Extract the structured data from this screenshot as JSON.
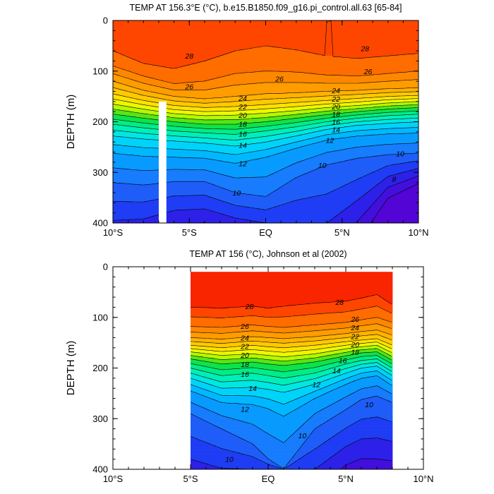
{
  "chart_data": [
    {
      "type": "contour",
      "title": "TEMP AT 156.3°E (°C), b.e15.B1850.f09_g16.pi_control.all.63 [65-84]",
      "ylabel": "DEPTH (m)",
      "xlim": [
        -10,
        10
      ],
      "ylim": [
        0,
        400
      ],
      "y_reversed": true,
      "x_ticks": [
        {
          "value": -10,
          "label": "10°S"
        },
        {
          "value": -5,
          "label": "5°S"
        },
        {
          "value": 0,
          "label": "EQ"
        },
        {
          "value": 5,
          "label": "5°N"
        },
        {
          "value": 10,
          "label": "10°N"
        }
      ],
      "y_ticks": [
        0,
        100,
        200,
        300,
        400
      ],
      "data_extent": {
        "lat": [
          -10,
          10
        ],
        "depth": [
          0,
          400
        ]
      },
      "land_mask_lat": [
        -7,
        -6.5
      ],
      "levels": [
        6,
        7,
        8,
        9,
        10,
        11,
        12,
        13,
        14,
        15,
        16,
        17,
        18,
        19,
        20,
        21,
        22,
        23,
        24,
        25,
        26,
        27,
        28,
        29
      ],
      "contours": [
        {
          "value": 28,
          "lat": [
            -10,
            -8,
            -6,
            -4,
            -2,
            0,
            2,
            4,
            6,
            8,
            10
          ],
          "depth": [
            10,
            40,
            55,
            45,
            20,
            2,
            20,
            45,
            40,
            25,
            15
          ]
        },
        {
          "value": 27,
          "lat": [
            -10,
            -8,
            -6,
            -4,
            -2,
            0,
            2,
            4,
            6,
            8,
            10
          ],
          "depth": [
            60,
            85,
            95,
            80,
            60,
            50,
            58,
            70,
            75,
            70,
            65
          ]
        },
        {
          "value": 26,
          "lat": [
            -10,
            -8,
            -6,
            -4,
            -2,
            0,
            2,
            4,
            6,
            8,
            10
          ],
          "depth": [
            90,
            110,
            125,
            120,
            105,
            100,
            102,
            108,
            110,
            105,
            100
          ]
        },
        {
          "value": 24,
          "lat": [
            -10,
            -8,
            -6,
            -4,
            -2,
            0,
            2,
            4,
            6,
            8,
            10
          ],
          "depth": [
            120,
            138,
            150,
            155,
            150,
            145,
            143,
            140,
            138,
            135,
            133
          ]
        },
        {
          "value": 22,
          "lat": [
            -10,
            -8,
            -6,
            -4,
            -2,
            0,
            2,
            4,
            6,
            8,
            10
          ],
          "depth": [
            145,
            158,
            168,
            172,
            170,
            166,
            162,
            158,
            154,
            150,
            148
          ]
        },
        {
          "value": 20,
          "lat": [
            -10,
            -8,
            -6,
            -4,
            -2,
            0,
            2,
            4,
            6,
            8,
            10
          ],
          "depth": [
            165,
            175,
            184,
            188,
            187,
            183,
            178,
            172,
            168,
            163,
            160
          ]
        },
        {
          "value": 18,
          "lat": [
            -10,
            -8,
            -6,
            -4,
            -2,
            0,
            2,
            4,
            6,
            8,
            10
          ],
          "depth": [
            185,
            193,
            200,
            205,
            205,
            200,
            193,
            186,
            180,
            175,
            172
          ]
        },
        {
          "value": 16,
          "lat": [
            -10,
            -8,
            -6,
            -4,
            -2,
            0,
            2,
            4,
            6,
            8,
            10
          ],
          "depth": [
            205,
            212,
            218,
            222,
            225,
            218,
            210,
            200,
            193,
            188,
            185
          ]
        },
        {
          "value": 14,
          "lat": [
            -10,
            -8,
            -6,
            -4,
            -2,
            0,
            2,
            4,
            6,
            8,
            10
          ],
          "depth": [
            228,
            234,
            238,
            242,
            248,
            240,
            228,
            215,
            207,
            203,
            200
          ]
        },
        {
          "value": 12,
          "lat": [
            -10,
            -8,
            -6,
            -4,
            -2,
            0,
            2,
            4,
            6,
            8,
            10
          ],
          "depth": [
            262,
            268,
            270,
            272,
            282,
            270,
            252,
            236,
            228,
            224,
            222
          ]
        },
        {
          "value": 10,
          "lat": [
            -10,
            -8,
            -6,
            -4,
            -2,
            0,
            2,
            4,
            6,
            8,
            10
          ],
          "depth": [
            320,
            325,
            318,
            318,
            340,
            348,
            310,
            285,
            272,
            265,
            262
          ]
        },
        {
          "value": 8,
          "lat": [
            -10,
            -8,
            -6,
            -4,
            -2,
            0,
            2,
            4,
            6,
            8,
            10
          ],
          "depth": [
            395,
            392,
            375,
            372,
            390,
            400,
            400,
            400,
            355,
            308,
            292
          ]
        }
      ],
      "contour_labels": [
        {
          "text": "28",
          "lat": -5,
          "depth": 70
        },
        {
          "text": "28",
          "lat": 6.5,
          "depth": 55
        },
        {
          "text": "26",
          "lat": -5,
          "depth": 130
        },
        {
          "text": "26",
          "lat": 0.9,
          "depth": 115
        },
        {
          "text": "26",
          "lat": 6.7,
          "depth": 100
        },
        {
          "text": "24",
          "lat": -1.5,
          "depth": 153
        },
        {
          "text": "24",
          "lat": 4.6,
          "depth": 138
        },
        {
          "text": "22",
          "lat": -1.5,
          "depth": 170
        },
        {
          "text": "22",
          "lat": 4.6,
          "depth": 155
        },
        {
          "text": "20",
          "lat": -1.5,
          "depth": 187
        },
        {
          "text": "20",
          "lat": 4.6,
          "depth": 170
        },
        {
          "text": "18",
          "lat": -1.5,
          "depth": 204
        },
        {
          "text": "18",
          "lat": 4.6,
          "depth": 185
        },
        {
          "text": "16",
          "lat": -1.5,
          "depth": 224
        },
        {
          "text": "16",
          "lat": 4.6,
          "depth": 200
        },
        {
          "text": "14",
          "lat": -1.5,
          "depth": 246
        },
        {
          "text": "14",
          "lat": 4.6,
          "depth": 215
        },
        {
          "text": "12",
          "lat": -1.5,
          "depth": 282
        },
        {
          "text": "12",
          "lat": 4.2,
          "depth": 236
        },
        {
          "text": "10",
          "lat": -1.9,
          "depth": 340
        },
        {
          "text": "10",
          "lat": 3.7,
          "depth": 286
        },
        {
          "text": "10",
          "lat": 8.8,
          "depth": 263
        },
        {
          "text": "8",
          "lat": 8.4,
          "depth": 313
        }
      ]
    },
    {
      "type": "contour",
      "title": "TEMP AT 156 (°C), Johnson et al (2002)",
      "ylabel": "DEPTH (m)",
      "xlim": [
        -10,
        10
      ],
      "ylim": [
        0,
        400
      ],
      "y_reversed": true,
      "x_ticks": [
        {
          "value": -10,
          "label": "10°S"
        },
        {
          "value": -5,
          "label": "5°S"
        },
        {
          "value": 0,
          "label": "EQ"
        },
        {
          "value": 5,
          "label": "5°N"
        },
        {
          "value": 10,
          "label": "10°N"
        }
      ],
      "y_ticks": [
        0,
        100,
        200,
        300,
        400
      ],
      "data_extent": {
        "lat": [
          -5,
          8
        ],
        "depth": [
          10,
          400
        ]
      },
      "levels": [
        6,
        7,
        8,
        9,
        10,
        11,
        12,
        13,
        14,
        15,
        16,
        17,
        18,
        19,
        20,
        21,
        22,
        23,
        24,
        25,
        26,
        27,
        28,
        29
      ],
      "contours": [
        {
          "value": 29,
          "lat": [
            -5,
            -3,
            -1,
            0,
            1,
            3,
            5,
            6,
            7,
            8
          ],
          "depth": [
            40,
            42,
            35,
            48,
            30,
            40,
            35,
            28,
            22,
            45
          ]
        },
        {
          "value": 28,
          "lat": [
            -5,
            -3,
            -1,
            0,
            1,
            3,
            5,
            6,
            7,
            8
          ],
          "depth": [
            80,
            82,
            78,
            82,
            78,
            72,
            68,
            62,
            55,
            75
          ]
        },
        {
          "value": 26,
          "lat": [
            -5,
            -3,
            -1,
            0,
            1,
            3,
            5,
            6,
            7,
            8
          ],
          "depth": [
            118,
            120,
            115,
            118,
            120,
            115,
            110,
            105,
            100,
            110
          ]
        },
        {
          "value": 24,
          "lat": [
            -5,
            -3,
            -1,
            0,
            1,
            3,
            5,
            6,
            7,
            8
          ],
          "depth": [
            140,
            143,
            138,
            140,
            142,
            138,
            132,
            128,
            125,
            135
          ]
        },
        {
          "value": 22,
          "lat": [
            -5,
            -3,
            -1,
            0,
            1,
            3,
            5,
            6,
            7,
            8
          ],
          "depth": [
            155,
            160,
            155,
            158,
            160,
            155,
            148,
            145,
            142,
            155
          ]
        },
        {
          "value": 20,
          "lat": [
            -5,
            -3,
            -1,
            0,
            1,
            3,
            5,
            6,
            7,
            8
          ],
          "depth": [
            168,
            175,
            172,
            175,
            178,
            172,
            162,
            158,
            155,
            170
          ]
        },
        {
          "value": 18,
          "lat": [
            -5,
            -3,
            -1,
            0,
            1,
            3,
            5,
            6,
            7,
            8
          ],
          "depth": [
            182,
            192,
            188,
            192,
            195,
            188,
            176,
            170,
            168,
            185
          ]
        },
        {
          "value": 16,
          "lat": [
            -5,
            -3,
            -1,
            0,
            1,
            3,
            5,
            6,
            7,
            8
          ],
          "depth": [
            200,
            215,
            210,
            215,
            220,
            210,
            192,
            185,
            182,
            200
          ]
        },
        {
          "value": 14,
          "lat": [
            -5,
            -3,
            -1,
            0,
            1,
            3,
            5,
            6,
            7,
            8
          ],
          "depth": [
            220,
            240,
            238,
            242,
            248,
            232,
            210,
            200,
            196,
            215
          ]
        },
        {
          "value": 12,
          "lat": [
            -5,
            -3,
            -1,
            0,
            1,
            3,
            5,
            6,
            7,
            8
          ],
          "depth": [
            245,
            268,
            272,
            280,
            295,
            260,
            232,
            220,
            215,
            235
          ]
        },
        {
          "value": 10,
          "lat": [
            -5,
            -3,
            -1,
            0,
            1,
            3,
            5,
            6,
            7,
            8
          ],
          "depth": [
            290,
            320,
            350,
            380,
            400,
            320,
            282,
            262,
            255,
            268
          ]
        },
        {
          "value": 8,
          "lat": [
            -5,
            -3,
            -1,
            0,
            1,
            3,
            5,
            6,
            7,
            8
          ],
          "depth": [
            380,
            398,
            400,
            400,
            400,
            400,
            355,
            340,
            338,
            345
          ]
        }
      ],
      "contour_labels": [
        {
          "text": "28",
          "lat": -1.2,
          "depth": 78
        },
        {
          "text": "28",
          "lat": 4.6,
          "depth": 70
        },
        {
          "text": "26",
          "lat": -1.5,
          "depth": 117
        },
        {
          "text": "26",
          "lat": 5.6,
          "depth": 103
        },
        {
          "text": "24",
          "lat": -1.5,
          "depth": 140
        },
        {
          "text": "24",
          "lat": 5.6,
          "depth": 120
        },
        {
          "text": "22",
          "lat": -1.5,
          "depth": 157
        },
        {
          "text": "22",
          "lat": 5.6,
          "depth": 137
        },
        {
          "text": "20",
          "lat": -1.5,
          "depth": 174
        },
        {
          "text": "20",
          "lat": 5.6,
          "depth": 153
        },
        {
          "text": "18",
          "lat": -1.5,
          "depth": 192
        },
        {
          "text": "18",
          "lat": 5.6,
          "depth": 168
        },
        {
          "text": "16",
          "lat": -1.5,
          "depth": 212
        },
        {
          "text": "16",
          "lat": 4.8,
          "depth": 185
        },
        {
          "text": "14",
          "lat": -1,
          "depth": 240
        },
        {
          "text": "14",
          "lat": 4.4,
          "depth": 205
        },
        {
          "text": "12",
          "lat": -1.5,
          "depth": 281
        },
        {
          "text": "12",
          "lat": 3.1,
          "depth": 232
        },
        {
          "text": "10",
          "lat": 2.2,
          "depth": 333
        },
        {
          "text": "10",
          "lat": 6.5,
          "depth": 272
        },
        {
          "text": "10",
          "lat": -2.5,
          "depth": 380
        }
      ]
    }
  ]
}
